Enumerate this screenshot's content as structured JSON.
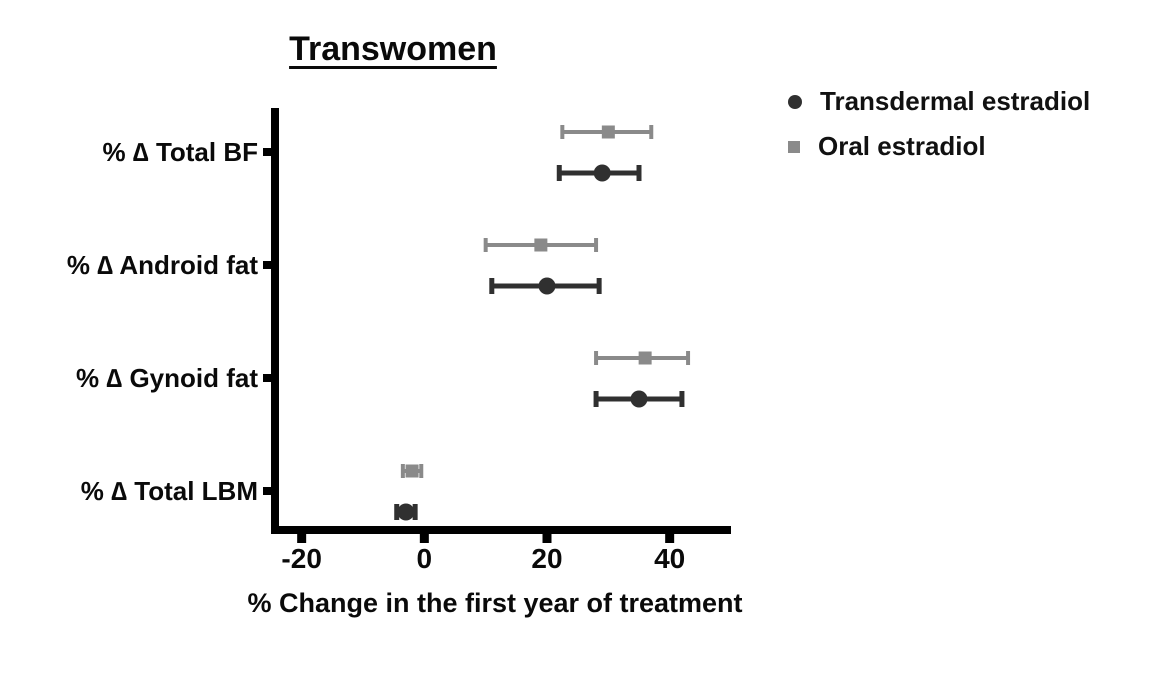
{
  "chart_data": {
    "type": "scatter",
    "subtype": "horizontal-point-with-error-bars",
    "title": "Transwomen",
    "xlabel": "% Change in the first year of treatment",
    "ylabel": "",
    "categories": [
      "% ∆ Total BF",
      "% ∆ Android fat",
      "% ∆ Gynoid fat",
      "% ∆ Total LBM"
    ],
    "xlim": [
      -25,
      50
    ],
    "xticks": [
      -20,
      0,
      20,
      40
    ],
    "grid": false,
    "legend_position": "top-right",
    "series": [
      {
        "name": "Transdermal estradiol",
        "marker": "circle",
        "color": "#303030",
        "values": [
          29,
          20,
          35,
          -3
        ],
        "ci_low": [
          22,
          11,
          28,
          -4.5
        ],
        "ci_high": [
          35,
          28.5,
          42,
          -1.5
        ]
      },
      {
        "name": "Oral estradiol",
        "marker": "square",
        "color": "#8a8a8a",
        "values": [
          30,
          19,
          36,
          -2
        ],
        "ci_low": [
          22.5,
          10,
          28,
          -3.5
        ],
        "ci_high": [
          37,
          28,
          43,
          -0.5
        ]
      }
    ],
    "axis_color": "#000000"
  }
}
